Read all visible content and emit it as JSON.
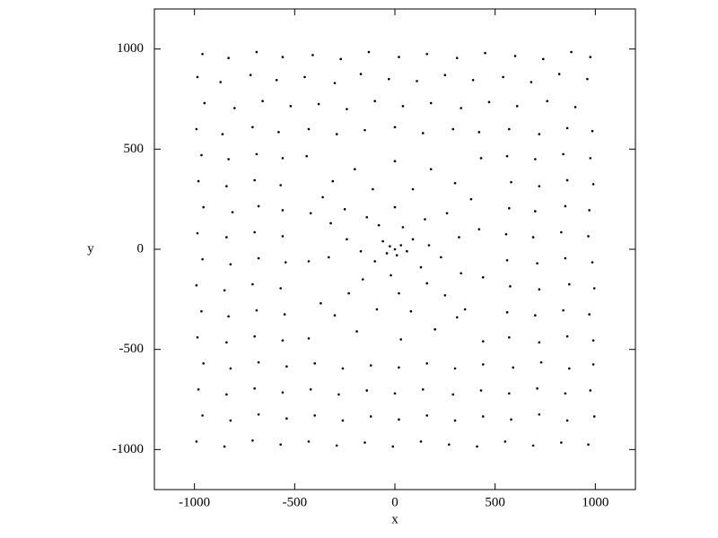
{
  "chart_data": {
    "type": "scatter",
    "x_label": "x",
    "y_label": "y",
    "color": "#000000",
    "xlim": [
      -1200,
      1200
    ],
    "ylim": [
      -1200,
      1200
    ],
    "xticks": [
      -1000,
      -500,
      0,
      500,
      1000
    ],
    "yticks": [
      -1000,
      -500,
      0,
      500,
      1000
    ],
    "x": [
      -960,
      -830,
      -690,
      -560,
      -410,
      -270,
      -130,
      20,
      160,
      310,
      450,
      600,
      740,
      880,
      975,
      -985,
      -870,
      -720,
      -590,
      -450,
      -300,
      -170,
      -30,
      110,
      250,
      390,
      540,
      680,
      820,
      960,
      -950,
      -800,
      -660,
      -520,
      -380,
      -240,
      -100,
      40,
      180,
      330,
      470,
      610,
      760,
      900,
      -990,
      -860,
      -710,
      -580,
      -430,
      -290,
      -150,
      0,
      140,
      290,
      420,
      570,
      720,
      860,
      985,
      -965,
      -830,
      -690,
      -560,
      -440,
      430,
      560,
      700,
      840,
      975,
      -980,
      -840,
      -700,
      -570,
      580,
      720,
      860,
      990,
      -955,
      -810,
      -680,
      -560,
      570,
      700,
      850,
      970,
      -985,
      -840,
      -700,
      -560,
      555,
      690,
      830,
      965,
      -960,
      -820,
      -680,
      -545,
      560,
      710,
      850,
      985,
      -990,
      -850,
      -710,
      -570,
      575,
      720,
      870,
      995,
      -965,
      -830,
      -690,
      -550,
      560,
      700,
      840,
      970,
      -985,
      -840,
      -700,
      -560,
      -430,
      440,
      570,
      720,
      860,
      990,
      -955,
      -820,
      -680,
      -540,
      -400,
      -260,
      -120,
      20,
      160,
      300,
      440,
      590,
      730,
      870,
      990,
      -980,
      -840,
      -700,
      -560,
      -420,
      -280,
      -140,
      0,
      140,
      290,
      430,
      570,
      710,
      850,
      975,
      -960,
      -820,
      -680,
      -540,
      -400,
      -260,
      -120,
      20,
      160,
      300,
      440,
      580,
      720,
      860,
      995,
      -990,
      -850,
      -710,
      -570,
      -430,
      -290,
      -150,
      -10,
      130,
      270,
      410,
      550,
      690,
      830,
      965,
      0,
      30,
      -25,
      10,
      -40,
      60,
      -60,
      90,
      -100,
      40,
      -80,
      130,
      -20,
      170,
      -170,
      150,
      -140,
      -160,
      160,
      0,
      20,
      230,
      -240,
      260,
      -250,
      -230,
      250,
      90,
      -110,
      80,
      -90,
      320,
      -330,
      330,
      -320,
      380,
      -360,
      -370,
      350,
      180,
      -200,
      200,
      -190,
      420,
      -430,
      440,
      -420,
      0,
      30,
      300,
      -310,
      -300,
      310
    ],
    "values": [
      975,
      955,
      985,
      960,
      970,
      950,
      985,
      960,
      975,
      955,
      980,
      965,
      950,
      985,
      960,
      860,
      835,
      870,
      845,
      860,
      830,
      875,
      850,
      840,
      870,
      845,
      860,
      835,
      875,
      850,
      730,
      705,
      740,
      715,
      725,
      700,
      740,
      715,
      730,
      705,
      735,
      715,
      740,
      710,
      600,
      575,
      610,
      585,
      600,
      575,
      595,
      610,
      580,
      600,
      585,
      600,
      575,
      605,
      590,
      470,
      450,
      475,
      455,
      465,
      455,
      465,
      450,
      475,
      455,
      340,
      315,
      345,
      320,
      335,
      315,
      345,
      325,
      210,
      185,
      215,
      195,
      205,
      190,
      215,
      195,
      80,
      60,
      85,
      65,
      75,
      60,
      85,
      65,
      -50,
      -75,
      -45,
      -65,
      -55,
      -70,
      -45,
      -65,
      -180,
      -205,
      -175,
      -195,
      -185,
      -200,
      -175,
      -195,
      -310,
      -335,
      -305,
      -325,
      -315,
      -330,
      -305,
      -325,
      -440,
      -465,
      -435,
      -455,
      -445,
      -460,
      -440,
      -465,
      -435,
      -455,
      -570,
      -595,
      -565,
      -585,
      -570,
      -595,
      -580,
      -590,
      -570,
      -595,
      -575,
      -590,
      -565,
      -595,
      -575,
      -700,
      -725,
      -695,
      -715,
      -700,
      -725,
      -705,
      -720,
      -700,
      -725,
      -705,
      -720,
      -695,
      -720,
      -705,
      -830,
      -855,
      -825,
      -845,
      -830,
      -855,
      -835,
      -850,
      -830,
      -855,
      -835,
      -850,
      -825,
      -855,
      -835,
      -960,
      -985,
      -955,
      -975,
      -960,
      -980,
      -965,
      -985,
      -960,
      -975,
      -985,
      -960,
      -980,
      -965,
      -975,
      0,
      20,
      15,
      -30,
      -20,
      -10,
      40,
      50,
      -60,
      110,
      120,
      -90,
      -130,
      20,
      -10,
      150,
      160,
      -150,
      -170,
      210,
      -220,
      -40,
      50,
      180,
      200,
      -220,
      -230,
      300,
      300,
      -310,
      -300,
      60,
      -40,
      -120,
      130,
      250,
      260,
      -270,
      -300,
      400,
      400,
      -400,
      -410,
      100,
      -60,
      -140,
      180,
      440,
      -450,
      330,
      340,
      -330,
      -340
    ]
  }
}
